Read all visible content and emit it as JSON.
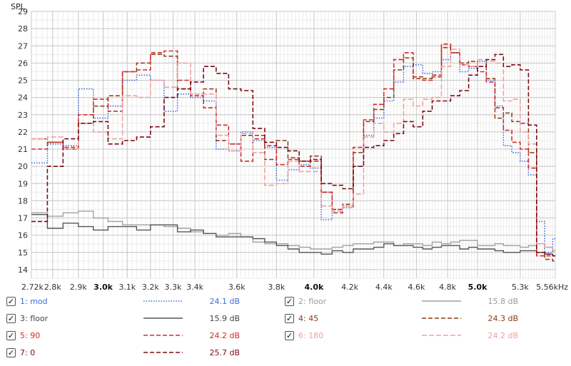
{
  "chart_data": {
    "type": "line",
    "ylabel": "SPL",
    "xunit": "kHz",
    "xlim": [
      2.72,
      5.56
    ],
    "ylim": [
      13.5,
      29
    ],
    "yticks": [
      14,
      15,
      16,
      17,
      18,
      19,
      20,
      21,
      22,
      23,
      24,
      25,
      26,
      27,
      28,
      29
    ],
    "xticks": [
      {
        "v": 2.72,
        "label": "2.72k",
        "bold": false
      },
      {
        "v": 2.8,
        "label": "2.8k",
        "bold": false
      },
      {
        "v": 2.9,
        "label": "2.9k",
        "bold": false
      },
      {
        "v": 3.0,
        "label": "3.0k",
        "bold": true
      },
      {
        "v": 3.1,
        "label": "3.1k",
        "bold": false
      },
      {
        "v": 3.2,
        "label": "3.2k",
        "bold": false
      },
      {
        "v": 3.3,
        "label": "3.3k",
        "bold": false
      },
      {
        "v": 3.4,
        "label": "3.4k",
        "bold": false
      },
      {
        "v": 3.6,
        "label": "3.6k",
        "bold": false
      },
      {
        "v": 3.8,
        "label": "3.8k",
        "bold": false
      },
      {
        "v": 4.0,
        "label": "4.0k",
        "bold": true
      },
      {
        "v": 4.2,
        "label": "4.2k",
        "bold": false
      },
      {
        "v": 4.4,
        "label": "4.4k",
        "bold": false
      },
      {
        "v": 4.6,
        "label": "4.6k",
        "bold": false
      },
      {
        "v": 4.8,
        "label": "4.8k",
        "bold": false
      },
      {
        "v": 5.0,
        "label": "5.0k",
        "bold": true
      },
      {
        "v": 5.3,
        "label": "5.3k",
        "bold": false
      },
      {
        "v": 5.56,
        "label": "5.56kHz",
        "bold": false
      }
    ],
    "x": [
      2.72,
      2.78,
      2.84,
      2.9,
      2.96,
      3.02,
      3.08,
      3.14,
      3.2,
      3.26,
      3.32,
      3.38,
      3.44,
      3.5,
      3.56,
      3.62,
      3.68,
      3.74,
      3.8,
      3.86,
      3.92,
      3.98,
      4.04,
      4.1,
      4.16,
      4.22,
      4.28,
      4.34,
      4.4,
      4.46,
      4.52,
      4.58,
      4.64,
      4.7,
      4.76,
      4.82,
      4.88,
      4.94,
      5.0,
      5.06,
      5.12,
      5.18,
      5.24,
      5.3,
      5.36,
      5.42,
      5.48,
      5.54,
      5.56
    ],
    "series": [
      {
        "name": "1: mod",
        "color": "#3a6fd8",
        "dash": "1.5,2",
        "width": 1.6,
        "values": [
          20.2,
          21.3,
          21.2,
          24.5,
          22.8,
          23.5,
          25.0,
          25.3,
          25.0,
          23.2,
          24.2,
          24.0,
          23.8,
          21.0,
          20.9,
          22.0,
          21.5,
          21.1,
          19.2,
          19.8,
          20.1,
          19.9,
          16.9,
          17.5,
          17.6,
          20.0,
          21.8,
          22.8,
          23.8,
          24.9,
          25.8,
          25.9,
          25.4,
          25.5,
          26.2,
          26.6,
          25.5,
          25.7,
          26.1,
          25.0,
          23.5,
          21.2,
          20.8,
          20.3,
          19.5,
          16.8,
          15.0,
          15.8,
          15.8
        ]
      },
      {
        "name": "2: floor",
        "color": "#a0a0a0",
        "dash": "",
        "width": 1.4,
        "values": [
          17.3,
          17.1,
          17.3,
          17.4,
          17.0,
          16.8,
          16.6,
          16.6,
          16.6,
          16.5,
          16.4,
          16.2,
          16.1,
          16.0,
          16.1,
          15.9,
          15.6,
          15.5,
          15.5,
          15.4,
          15.3,
          15.2,
          15.2,
          15.3,
          15.4,
          15.5,
          15.5,
          15.6,
          15.6,
          15.4,
          15.5,
          15.5,
          15.4,
          15.6,
          15.5,
          15.6,
          15.7,
          15.7,
          15.4,
          15.4,
          15.5,
          15.4,
          15.4,
          15.3,
          15.4,
          15.5,
          15.3,
          15.1,
          15.1
        ]
      },
      {
        "name": "3: floor",
        "color": "#555555",
        "dash": "",
        "width": 1.4,
        "values": [
          17.2,
          16.4,
          16.7,
          16.5,
          16.3,
          16.5,
          16.5,
          16.3,
          16.6,
          16.6,
          16.2,
          16.3,
          16.1,
          15.9,
          15.9,
          15.9,
          15.8,
          15.6,
          15.4,
          15.2,
          15.0,
          15.0,
          14.9,
          15.1,
          15.0,
          15.2,
          15.2,
          15.3,
          15.5,
          15.4,
          15.4,
          15.3,
          15.2,
          15.3,
          15.4,
          15.4,
          15.2,
          15.3,
          15.2,
          15.2,
          15.1,
          15.0,
          15.0,
          15.1,
          15.1,
          15.0,
          14.9,
          14.8,
          14.8
        ]
      },
      {
        "name": "4: 45",
        "color": "#8b3a10",
        "dash": "6,3",
        "width": 1.5,
        "values": [
          21.6,
          21.4,
          21.0,
          22.5,
          23.5,
          24.1,
          25.5,
          26.0,
          26.5,
          26.4,
          24.5,
          24.2,
          24.5,
          21.5,
          21.3,
          21.8,
          21.8,
          20.4,
          21.5,
          20.5,
          20.3,
          20.6,
          18.5,
          17.5,
          17.8,
          20.8,
          22.6,
          23.3,
          24.0,
          25.6,
          26.3,
          25.1,
          25.1,
          25.3,
          26.9,
          26.6,
          26.0,
          26.1,
          25.8,
          25.1,
          22.8,
          23.1,
          22.6,
          22.5,
          20.8,
          15.0,
          14.6,
          14.5,
          14.5
        ]
      },
      {
        "name": "5: 90",
        "color": "#d42a2a",
        "dash": "6,3",
        "width": 1.6,
        "values": [
          21.0,
          21.4,
          21.1,
          23.0,
          23.9,
          23.2,
          25.5,
          25.6,
          26.6,
          26.7,
          25.0,
          24.1,
          23.4,
          22.4,
          21.3,
          20.3,
          21.6,
          21.2,
          20.1,
          20.4,
          20.0,
          20.3,
          18.5,
          17.3,
          17.7,
          21.1,
          22.7,
          23.6,
          24.5,
          26.2,
          26.6,
          25.2,
          25.0,
          25.2,
          27.1,
          26.6,
          25.9,
          25.8,
          25.5,
          24.9,
          23.4,
          22.1,
          21.4,
          21.0,
          19.9,
          14.8,
          14.8,
          14.8,
          14.8
        ]
      },
      {
        "name": "6: 180",
        "color": "#f0a0a0",
        "dash": "7,3",
        "width": 1.6,
        "values": [
          21.6,
          21.7,
          21.0,
          22.5,
          22.0,
          21.6,
          24.1,
          24.0,
          25.0,
          24.6,
          26.0,
          24.2,
          24.2,
          21.8,
          20.9,
          21.9,
          20.8,
          18.9,
          19.0,
          20.3,
          19.7,
          19.7,
          17.7,
          17.4,
          17.7,
          18.4,
          21.7,
          22.5,
          22.0,
          22.5,
          23.9,
          23.5,
          23.9,
          24.0,
          25.8,
          26.8,
          25.9,
          25.8,
          26.2,
          26.1,
          26.0,
          23.8,
          23.9,
          22.0,
          21.3,
          15.5,
          15.3,
          15.2,
          15.2
        ]
      },
      {
        "name": "7: 0",
        "color": "#7a0a14",
        "dash": "6,3",
        "width": 1.6,
        "values": [
          16.8,
          20.0,
          21.6,
          22.5,
          22.6,
          21.3,
          21.5,
          21.7,
          22.3,
          24.0,
          24.5,
          24.9,
          25.8,
          25.4,
          24.5,
          24.4,
          22.2,
          21.4,
          21.1,
          20.9,
          20.3,
          20.4,
          19.0,
          18.9,
          18.7,
          20.0,
          21.1,
          21.2,
          21.5,
          21.9,
          22.6,
          22.3,
          23.2,
          23.8,
          23.8,
          24.1,
          24.4,
          25.3,
          25.8,
          26.2,
          26.5,
          25.8,
          25.9,
          25.6,
          22.4,
          15.0,
          14.9,
          14.8,
          14.8
        ]
      }
    ],
    "legend": [
      {
        "label": "1: mod",
        "value": "24.1 dB",
        "color": "#3a6fd8",
        "dash": "1.5,2",
        "checked": true,
        "muted": false
      },
      {
        "label": "2: floor",
        "value": "15.8 dB",
        "color": "#a0a0a0",
        "dash": "",
        "checked": true,
        "muted": true
      },
      {
        "label": "3: floor",
        "value": "15.9 dB",
        "color": "#555555",
        "dash": "",
        "checked": true,
        "muted": false
      },
      {
        "label": "4: 45",
        "value": "24.3 dB",
        "color": "#8b3a10",
        "dash": "6,3",
        "checked": true,
        "muted": false
      },
      {
        "label": "5: 90",
        "value": "24.2 dB",
        "color": "#d42a2a",
        "dash": "6,3",
        "checked": true,
        "muted": false
      },
      {
        "label": "6: 180",
        "value": "24.2 dB",
        "color": "#f0a0a0",
        "dash": "7,3",
        "checked": true,
        "muted": false
      },
      {
        "label": "7: 0",
        "value": "25.7 dB",
        "color": "#7a0a14",
        "dash": "6,3",
        "checked": true,
        "muted": false
      }
    ],
    "grid": true,
    "legend_placement": "bottom"
  },
  "checkbox_glyph": "✓"
}
